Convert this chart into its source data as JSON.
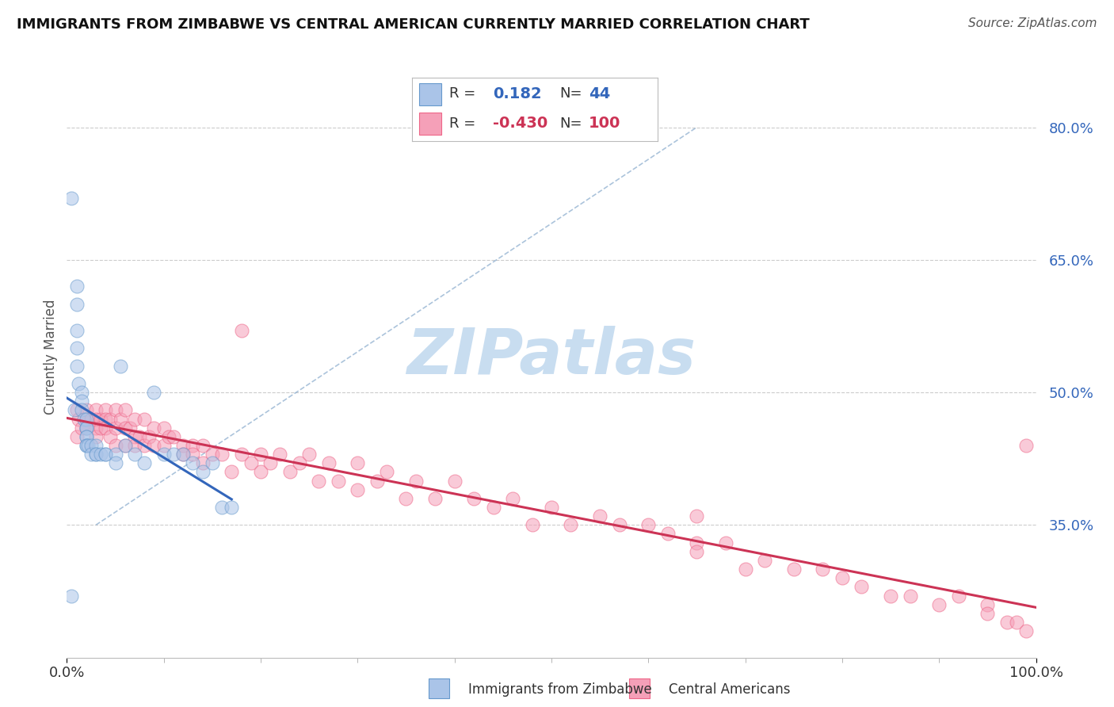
{
  "title": "IMMIGRANTS FROM ZIMBABWE VS CENTRAL AMERICAN CURRENTLY MARRIED CORRELATION CHART",
  "source": "Source: ZipAtlas.com",
  "ylabel": "Currently Married",
  "xlim": [
    0.0,
    1.0
  ],
  "ylim": [
    0.2,
    0.88
  ],
  "yticks": [
    0.35,
    0.5,
    0.65,
    0.8
  ],
  "ytick_labels": [
    "35.0%",
    "50.0%",
    "65.0%",
    "80.0%"
  ],
  "xticks": [
    0.0,
    1.0
  ],
  "xtick_labels": [
    "0.0%",
    "100.0%"
  ],
  "label1": "Immigrants from Zimbabwe",
  "label2": "Central Americans",
  "color1": "#aac4e8",
  "color2": "#f5a0b8",
  "edge1": "#6699cc",
  "edge2": "#ee6688",
  "trendline1_color": "#3366bb",
  "trendline2_color": "#cc3355",
  "diag_color": "#88aacc",
  "watermark": "ZIPatlas",
  "watermark_color": "#c8ddf0",
  "background_color": "#ffffff",
  "grid_color": "#cccccc",
  "r1": 0.182,
  "n1": 44,
  "r2": -0.43,
  "n2": 100,
  "zimbabwe_x": [
    0.005,
    0.005,
    0.008,
    0.01,
    0.01,
    0.01,
    0.01,
    0.01,
    0.012,
    0.015,
    0.015,
    0.015,
    0.018,
    0.02,
    0.02,
    0.02,
    0.02,
    0.02,
    0.02,
    0.02,
    0.022,
    0.025,
    0.025,
    0.03,
    0.03,
    0.03,
    0.035,
    0.04,
    0.04,
    0.05,
    0.05,
    0.055,
    0.06,
    0.07,
    0.08,
    0.09,
    0.1,
    0.11,
    0.12,
    0.13,
    0.14,
    0.15,
    0.16,
    0.17
  ],
  "zimbabwe_y": [
    0.72,
    0.27,
    0.48,
    0.62,
    0.6,
    0.57,
    0.55,
    0.53,
    0.51,
    0.5,
    0.49,
    0.48,
    0.47,
    0.47,
    0.46,
    0.46,
    0.45,
    0.45,
    0.44,
    0.44,
    0.44,
    0.44,
    0.43,
    0.44,
    0.43,
    0.43,
    0.43,
    0.43,
    0.43,
    0.43,
    0.42,
    0.53,
    0.44,
    0.43,
    0.42,
    0.5,
    0.43,
    0.43,
    0.43,
    0.42,
    0.41,
    0.42,
    0.37,
    0.37
  ],
  "central_x": [
    0.01,
    0.01,
    0.012,
    0.015,
    0.02,
    0.02,
    0.02,
    0.025,
    0.03,
    0.03,
    0.03,
    0.03,
    0.035,
    0.035,
    0.04,
    0.04,
    0.04,
    0.045,
    0.045,
    0.05,
    0.05,
    0.05,
    0.055,
    0.06,
    0.06,
    0.06,
    0.065,
    0.07,
    0.07,
    0.07,
    0.075,
    0.08,
    0.08,
    0.085,
    0.09,
    0.09,
    0.1,
    0.1,
    0.105,
    0.11,
    0.12,
    0.12,
    0.13,
    0.13,
    0.14,
    0.14,
    0.15,
    0.16,
    0.17,
    0.18,
    0.18,
    0.19,
    0.2,
    0.2,
    0.21,
    0.22,
    0.23,
    0.24,
    0.25,
    0.26,
    0.27,
    0.28,
    0.3,
    0.3,
    0.32,
    0.33,
    0.35,
    0.36,
    0.38,
    0.4,
    0.42,
    0.44,
    0.46,
    0.48,
    0.5,
    0.52,
    0.55,
    0.57,
    0.6,
    0.62,
    0.65,
    0.65,
    0.65,
    0.68,
    0.7,
    0.72,
    0.75,
    0.78,
    0.8,
    0.82,
    0.85,
    0.87,
    0.9,
    0.92,
    0.95,
    0.95,
    0.97,
    0.98,
    0.99,
    0.99
  ],
  "central_y": [
    0.48,
    0.45,
    0.47,
    0.46,
    0.48,
    0.47,
    0.46,
    0.47,
    0.48,
    0.47,
    0.46,
    0.45,
    0.47,
    0.46,
    0.48,
    0.47,
    0.46,
    0.47,
    0.45,
    0.48,
    0.46,
    0.44,
    0.47,
    0.48,
    0.46,
    0.44,
    0.46,
    0.47,
    0.45,
    0.44,
    0.45,
    0.47,
    0.44,
    0.45,
    0.46,
    0.44,
    0.46,
    0.44,
    0.45,
    0.45,
    0.44,
    0.43,
    0.44,
    0.43,
    0.44,
    0.42,
    0.43,
    0.43,
    0.41,
    0.57,
    0.43,
    0.42,
    0.43,
    0.41,
    0.42,
    0.43,
    0.41,
    0.42,
    0.43,
    0.4,
    0.42,
    0.4,
    0.42,
    0.39,
    0.4,
    0.41,
    0.38,
    0.4,
    0.38,
    0.4,
    0.38,
    0.37,
    0.38,
    0.35,
    0.37,
    0.35,
    0.36,
    0.35,
    0.35,
    0.34,
    0.33,
    0.36,
    0.32,
    0.33,
    0.3,
    0.31,
    0.3,
    0.3,
    0.29,
    0.28,
    0.27,
    0.27,
    0.26,
    0.27,
    0.26,
    0.25,
    0.24,
    0.24,
    0.23,
    0.44
  ]
}
